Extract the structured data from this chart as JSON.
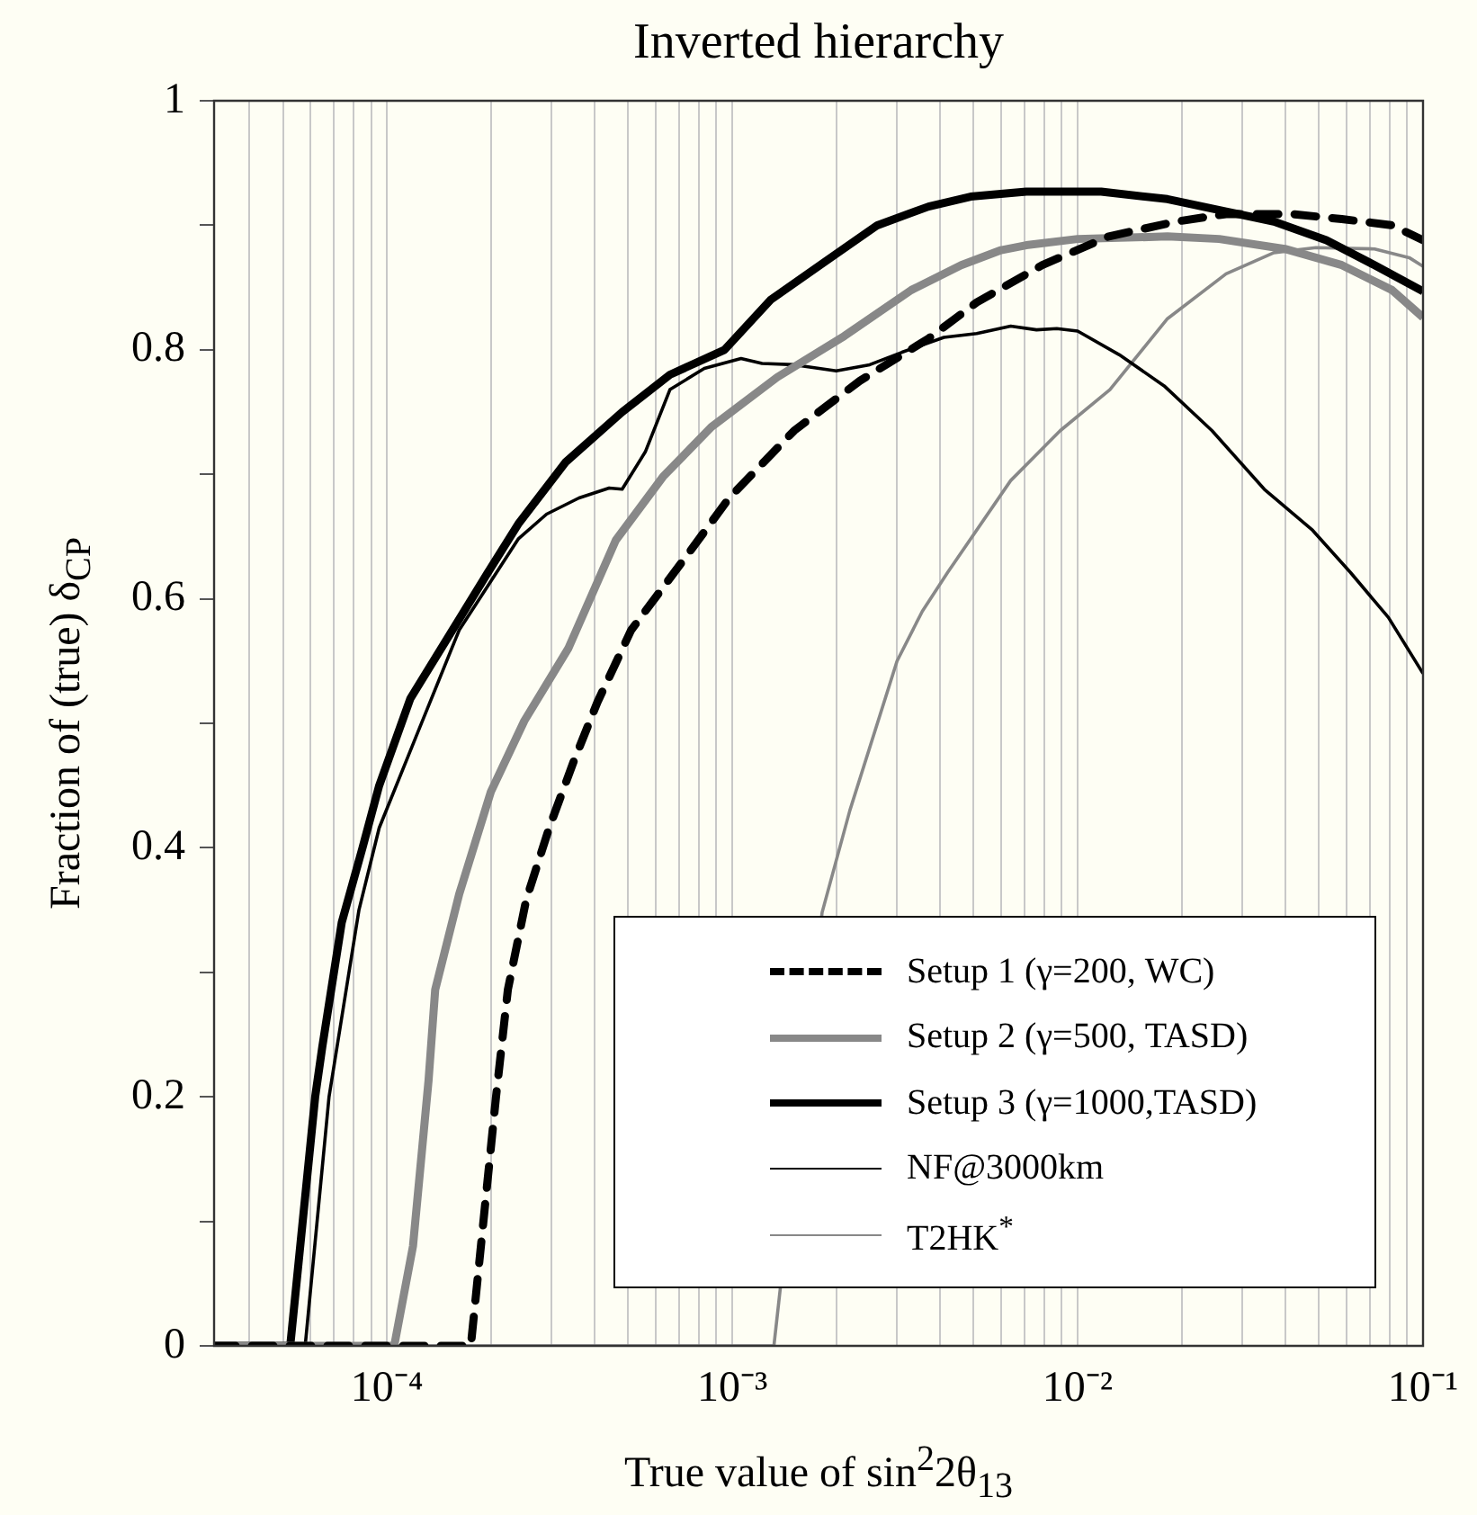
{
  "chart_data": {
    "type": "line",
    "title": "Inverted hierarchy",
    "xlabel": "True value of sin$^{2}$2θ$_{13}$",
    "ylabel": "Fraction of (true) δ$_{CP}$",
    "log": "x",
    "grid": "x",
    "legend": "bottom right",
    "marker": "none",
    "xlim": [
      3.16e-05,
      0.1
    ],
    "xticks": [
      {
        "value": 4e-05,
        "label": null
      },
      {
        "value": 5e-05,
        "label": null
      },
      {
        "value": 6e-05,
        "label": null
      },
      {
        "value": 7e-05,
        "label": null
      },
      {
        "value": 8e-05,
        "label": null
      },
      {
        "value": 9e-05,
        "label": null
      },
      {
        "value": 0.0001,
        "label": "10⁻⁴"
      },
      {
        "value": 0.0002,
        "label": null
      },
      {
        "value": 0.0003,
        "label": null
      },
      {
        "value": 0.0004,
        "label": null
      },
      {
        "value": 0.0005,
        "label": null
      },
      {
        "value": 0.0006,
        "label": null
      },
      {
        "value": 0.0007,
        "label": null
      },
      {
        "value": 0.0008,
        "label": null
      },
      {
        "value": 0.0009,
        "label": null
      },
      {
        "value": 0.001,
        "label": "10⁻³"
      },
      {
        "value": 0.002,
        "label": null
      },
      {
        "value": 0.003,
        "label": null
      },
      {
        "value": 0.004,
        "label": null
      },
      {
        "value": 0.005,
        "label": null
      },
      {
        "value": 0.006,
        "label": null
      },
      {
        "value": 0.007,
        "label": null
      },
      {
        "value": 0.008,
        "label": null
      },
      {
        "value": 0.009,
        "label": null
      },
      {
        "value": 0.01,
        "label": "10⁻²"
      },
      {
        "value": 0.02,
        "label": null
      },
      {
        "value": 0.03,
        "label": null
      },
      {
        "value": 0.04,
        "label": null
      },
      {
        "value": 0.05,
        "label": null
      },
      {
        "value": 0.06,
        "label": null
      },
      {
        "value": 0.07,
        "label": null
      },
      {
        "value": 0.08,
        "label": null
      },
      {
        "value": 0.09,
        "label": null
      },
      {
        "value": 0.1,
        "label": "10⁻¹"
      }
    ],
    "ylim": [
      0,
      1
    ],
    "yticks": [
      0,
      {
        "value": 0.1,
        "label": null
      },
      0.2,
      {
        "value": 0.3,
        "label": null
      },
      0.4,
      {
        "value": 0.5,
        "label": null
      },
      0.6,
      {
        "value": 0.7,
        "label": null
      },
      0.8,
      {
        "value": 0.9,
        "label": null
      },
      1
    ],
    "series": [
      {
        "name": "Setup 1 (γ=200, WC)",
        "color": "#000000",
        "line_style": "dashed",
        "x": [
          3.16e-05,
          0.000175,
          0.000207,
          0.000224,
          0.000253,
          0.000295,
          0.000347,
          0.000407,
          0.00051,
          0.00074,
          0.00098,
          0.00151,
          0.00234,
          0.0037,
          0.0051,
          0.0079,
          0.0123,
          0.0193,
          0.0269,
          0.0417,
          0.0582,
          0.0813,
          0.1
        ],
        "values": [
          0,
          0,
          0.2,
          0.286,
          0.358,
          0.416,
          0.469,
          0.517,
          0.575,
          0.635,
          0.681,
          0.735,
          0.775,
          0.809,
          0.838,
          0.868,
          0.891,
          0.903,
          0.909,
          0.909,
          0.905,
          0.9,
          0.888
        ]
      },
      {
        "name": "Setup 2 (γ=500, TASD)",
        "color": "#888888",
        "line_style": "solid",
        "x": [
          3.16e-05,
          0.000105,
          0.000119,
          0.000132,
          0.000138,
          0.000162,
          0.0002,
          0.00025,
          0.000335,
          0.00046,
          0.00063,
          0.00087,
          0.00135,
          0.00211,
          0.0033,
          0.0046,
          0.006,
          0.0071,
          0.01,
          0.0182,
          0.0257,
          0.0398,
          0.0582,
          0.0813,
          0.1
        ],
        "values": [
          0,
          0,
          0.08,
          0.213,
          0.286,
          0.363,
          0.445,
          0.502,
          0.56,
          0.647,
          0.698,
          0.738,
          0.778,
          0.811,
          0.848,
          0.868,
          0.88,
          0.884,
          0.889,
          0.891,
          0.889,
          0.881,
          0.868,
          0.848,
          0.826
        ]
      },
      {
        "name": "Setup 3 (γ=1000,TASD)",
        "color": "#000000",
        "line_style": "solid",
        "x": [
          3.16e-05,
          5.25e-05,
          6.2e-05,
          6.5e-05,
          7.4e-05,
          8.5e-05,
          9.5e-05,
          0.000117,
          0.000155,
          0.000195,
          0.00024,
          0.00033,
          0.00048,
          0.00066,
          0.00095,
          0.00129,
          0.00184,
          0.00263,
          0.0037,
          0.0049,
          0.0071,
          0.0117,
          0.0182,
          0.0269,
          0.037,
          0.0525,
          0.0724,
          0.1
        ],
        "values": [
          0,
          0,
          0.2,
          0.24,
          0.34,
          0.4,
          0.45,
          0.52,
          0.575,
          0.62,
          0.66,
          0.71,
          0.75,
          0.78,
          0.8,
          0.84,
          0.87,
          0.9,
          0.915,
          0.923,
          0.927,
          0.927,
          0.921,
          0.911,
          0.903,
          0.888,
          0.868,
          0.847
        ]
      },
      {
        "name": "NF@3000km",
        "color": "#000000",
        "line_style": "solid",
        "x": [
          3.16e-05,
          5.8e-05,
          6.8e-05,
          8.3e-05,
          9.5e-05,
          0.000123,
          0.000162,
          0.00024,
          0.00029,
          0.00036,
          0.00044,
          0.00048,
          0.00056,
          0.00066,
          0.00083,
          0.00106,
          0.00122,
          0.00151,
          0.002,
          0.0025,
          0.0031,
          0.0041,
          0.0051,
          0.0064,
          0.0076,
          0.0087,
          0.01,
          0.0132,
          0.0178,
          0.0245,
          0.0347,
          0.0479,
          0.0617,
          0.0794,
          0.1
        ],
        "values": [
          0,
          0,
          0.2,
          0.35,
          0.416,
          0.493,
          0.575,
          0.648,
          0.668,
          0.681,
          0.689,
          0.688,
          0.718,
          0.768,
          0.785,
          0.793,
          0.789,
          0.788,
          0.783,
          0.788,
          0.798,
          0.81,
          0.813,
          0.819,
          0.816,
          0.817,
          0.815,
          0.796,
          0.771,
          0.735,
          0.688,
          0.655,
          0.621,
          0.585,
          0.54
        ]
      },
      {
        "name": "T2HK$^{*}$",
        "color": "#888888",
        "line_style": "solid",
        "x": [
          3.16e-05,
          0.00132,
          0.00182,
          0.00219,
          0.003,
          0.00355,
          0.0042,
          0.0064,
          0.0089,
          0.0124,
          0.0182,
          0.0269,
          0.037,
          0.049,
          0.0724,
          0.0912,
          0.1
        ],
        "values": [
          0,
          0,
          0.348,
          0.43,
          0.55,
          0.59,
          0.621,
          0.695,
          0.735,
          0.768,
          0.825,
          0.861,
          0.878,
          0.882,
          0.881,
          0.874,
          0.867
        ]
      }
    ]
  }
}
